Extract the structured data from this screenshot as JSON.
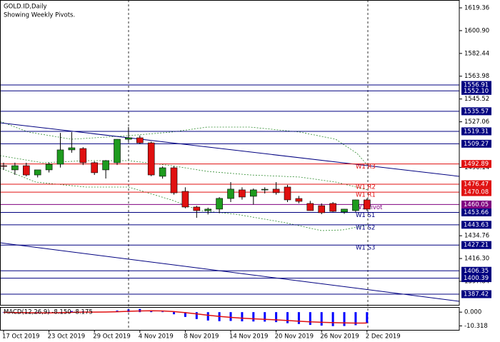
{
  "chart_data": {
    "type": "candlestick",
    "title": "GOLD.ID,Daily",
    "subtitle": "Showing Weekly Pivots.",
    "categories": [
      "17 Oct 2019",
      null,
      null,
      null,
      "23 Oct 2019",
      null,
      null,
      null,
      "29 Oct 2019",
      null,
      null,
      null,
      "4 Nov 2019",
      null,
      null,
      null,
      "8 Nov 2019",
      null,
      null,
      null,
      "14 Nov 2019",
      null,
      null,
      null,
      "20 Nov 2019",
      null,
      null,
      null,
      "26 Nov 2019",
      null,
      null,
      null,
      "2 Dec 2019"
    ],
    "open": [
      1491.5,
      1488.1,
      1491.5,
      1484.0,
      1488.1,
      1492.7,
      1504.3,
      1505.4,
      1493.9,
      1488.1,
      1493.9,
      1512.9,
      1514.1,
      1510.0,
      1482.9,
      1489.8,
      1470.7,
      1458.0,
      1455.1,
      1456.3,
      1464.9,
      1471.9,
      1466.7,
      1471.9,
      1472.5,
      1474.2,
      1464.9,
      1460.9,
      1459.1,
      1460.9,
      1454.0,
      1455.1,
      1463.8
    ],
    "high": [
      1494.0,
      1494.0,
      1493.9,
      1488.0,
      1493.9,
      1518.1,
      1518.7,
      1506.5,
      1495.0,
      1496.0,
      1513.0,
      1522.8,
      1516.0,
      1511.0,
      1490.9,
      1491.0,
      1474.0,
      1459.0,
      1457.5,
      1466.0,
      1478.2,
      1474.0,
      1473.0,
      1474.0,
      1478.2,
      1476.0,
      1467.0,
      1463.0,
      1461.0,
      1462.0,
      1456.5,
      1464.0,
      1465.0
    ],
    "low": [
      1488.0,
      1484.0,
      1482.9,
      1482.0,
      1486.0,
      1490.0,
      1502.0,
      1492.0,
      1484.0,
      1481.1,
      1492.0,
      1511.0,
      1509.0,
      1483.0,
      1481.0,
      1468.0,
      1457.0,
      1449.3,
      1452.0,
      1453.0,
      1462.0,
      1464.0,
      1460.0,
      1469.0,
      1468.0,
      1462.0,
      1461.0,
      1455.0,
      1452.2,
      1454.0,
      1452.5,
      1454.0,
      1455.0
    ],
    "close": [
      1491.0,
      1491.5,
      1484.0,
      1488.1,
      1492.7,
      1504.3,
      1506.0,
      1493.9,
      1485.8,
      1495.6,
      1512.9,
      1514.1,
      1510.0,
      1484.0,
      1489.8,
      1469.5,
      1458.0,
      1455.1,
      1456.3,
      1465.0,
      1472.5,
      1466.1,
      1471.9,
      1472.4,
      1469.6,
      1463.8,
      1462.6,
      1455.1,
      1453.4,
      1454.5,
      1456.3,
      1463.8,
      1456.3
    ],
    "up_color": "#1e9b1e",
    "down_color": "#e01010",
    "ylim": [
      1378.74,
      1625.72
    ],
    "yticks": [
      1619.36,
      {
        "value": 1600.9,
        "label": "1600.90"
      },
      1582.44,
      1563.98,
      1545.52,
      1527.06,
      1490.14,
      1434.76,
      {
        "value": 1416.3,
        "label": "1416.30"
      },
      1397.84
    ],
    "levels": [
      {
        "value": 1556.91,
        "color": "#000080"
      },
      {
        "value": 1552.1,
        "label": "1552.10",
        "color": "#000080"
      },
      {
        "value": 1535.57,
        "color": "#000080"
      },
      {
        "value": 1519.31,
        "color": "#000080"
      },
      {
        "value": 1509.27,
        "color": "#000080"
      },
      {
        "value": 1492.89,
        "color": "#e01010",
        "name": "W1 R3"
      },
      {
        "value": 1476.47,
        "color": "#e01010",
        "name": "W1 R2"
      },
      {
        "value": 1470.08,
        "color": "#e01010",
        "name": "W1 R1"
      },
      {
        "value": 1460.05,
        "color": "#800080",
        "name": "W1 Pivot"
      },
      {
        "value": 1453.66,
        "color": "#000080",
        "name": "W1 S1"
      },
      {
        "value": 1443.63,
        "color": "#000080",
        "name": "W1 S2"
      },
      {
        "value": 1427.21,
        "color": "#000080",
        "name": "W1 S3"
      },
      {
        "value": 1406.35,
        "color": "#000080"
      },
      {
        "value": 1400.39,
        "color": "#000080"
      },
      {
        "value": 1387.42,
        "color": "#000080"
      }
    ],
    "macd": {
      "title": "MACD(12,26,9) -8.150 -8.175",
      "ylim": [
        -13.3,
        3.3
      ],
      "yticks": [
        {
          "value": 0,
          "label": "0.000"
        },
        {
          "value": -10.318,
          "label": "-10.318"
        }
      ],
      "main": {
        "color": "#0000ff",
        "values": [
          -0.3,
          -0.5,
          -0.8,
          -0.9,
          -0.7,
          0.1,
          0.8,
          0.6,
          0.2,
          0.3,
          1.2,
          2.0,
          2.4,
          1.2,
          0.4,
          -1.6,
          -3.6,
          -5.2,
          -6.3,
          -6.8,
          -6.6,
          -6.9,
          -7.0,
          -7.1,
          -7.5,
          -8.3,
          -8.9,
          -9.6,
          -10.1,
          -10.5,
          -10.4,
          -9.8,
          -8.15
        ]
      },
      "signal": {
        "color": "#e01010",
        "values": [
          -0.2,
          -0.3,
          -0.4,
          -0.5,
          -0.6,
          -0.4,
          -0.2,
          0.0,
          0.0,
          0.1,
          0.3,
          0.6,
          0.9,
          1.0,
          0.9,
          0.4,
          -0.4,
          -1.3,
          -2.3,
          -3.2,
          -3.9,
          -4.5,
          -5.0,
          -5.4,
          -5.8,
          -6.3,
          -6.8,
          -7.3,
          -7.6,
          -7.9,
          -8.1,
          -8.2,
          -8.175
        ]
      }
    }
  }
}
